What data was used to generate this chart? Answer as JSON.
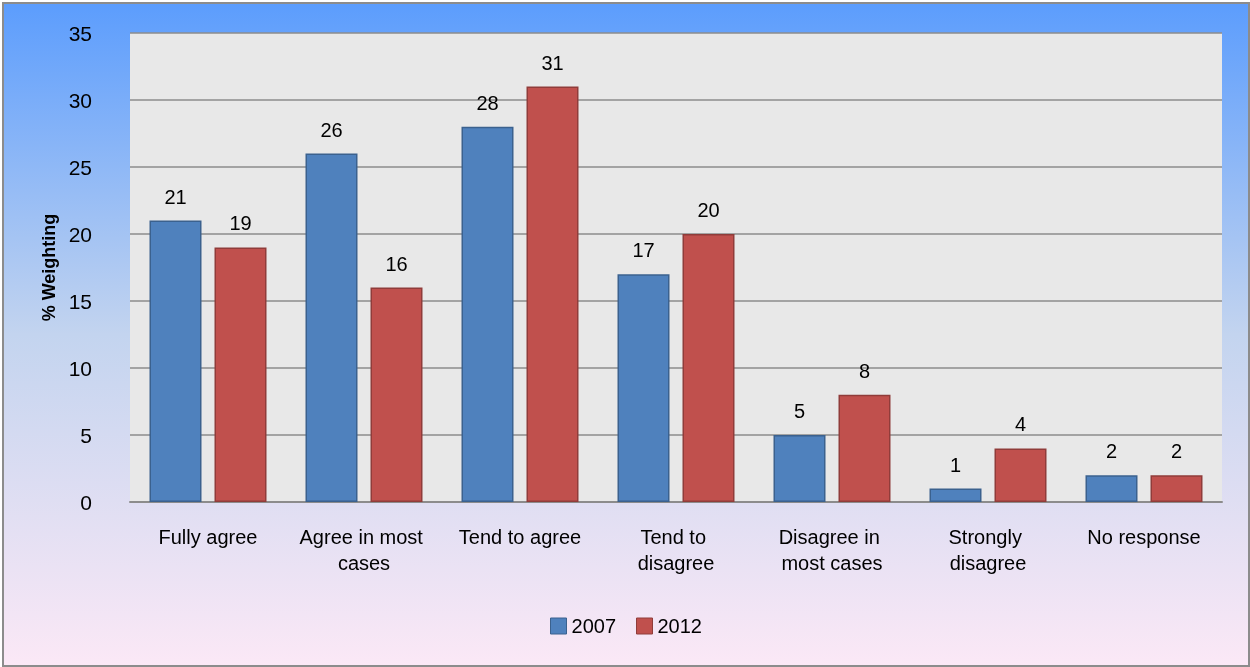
{
  "chart_data": {
    "type": "bar",
    "ylabel": "% Weighting",
    "categories": [
      "Fully agree",
      "Agree in most cases",
      "Tend to agree",
      "Tend to disagree",
      "Disagree in most cases",
      "Strongly disagree",
      "No response"
    ],
    "series": [
      {
        "name": "2007",
        "color": "#4f81bd",
        "values": [
          21,
          26,
          28,
          17,
          5,
          1,
          2
        ]
      },
      {
        "name": "2012",
        "color": "#c0504d",
        "values": [
          19,
          16,
          31,
          20,
          8,
          4,
          2
        ]
      }
    ],
    "ylim": [
      0,
      35
    ],
    "yticks": [
      0,
      5,
      10,
      15,
      20,
      25,
      30,
      35
    ],
    "grid": "y",
    "legend": "bottom",
    "data_labels": true
  }
}
